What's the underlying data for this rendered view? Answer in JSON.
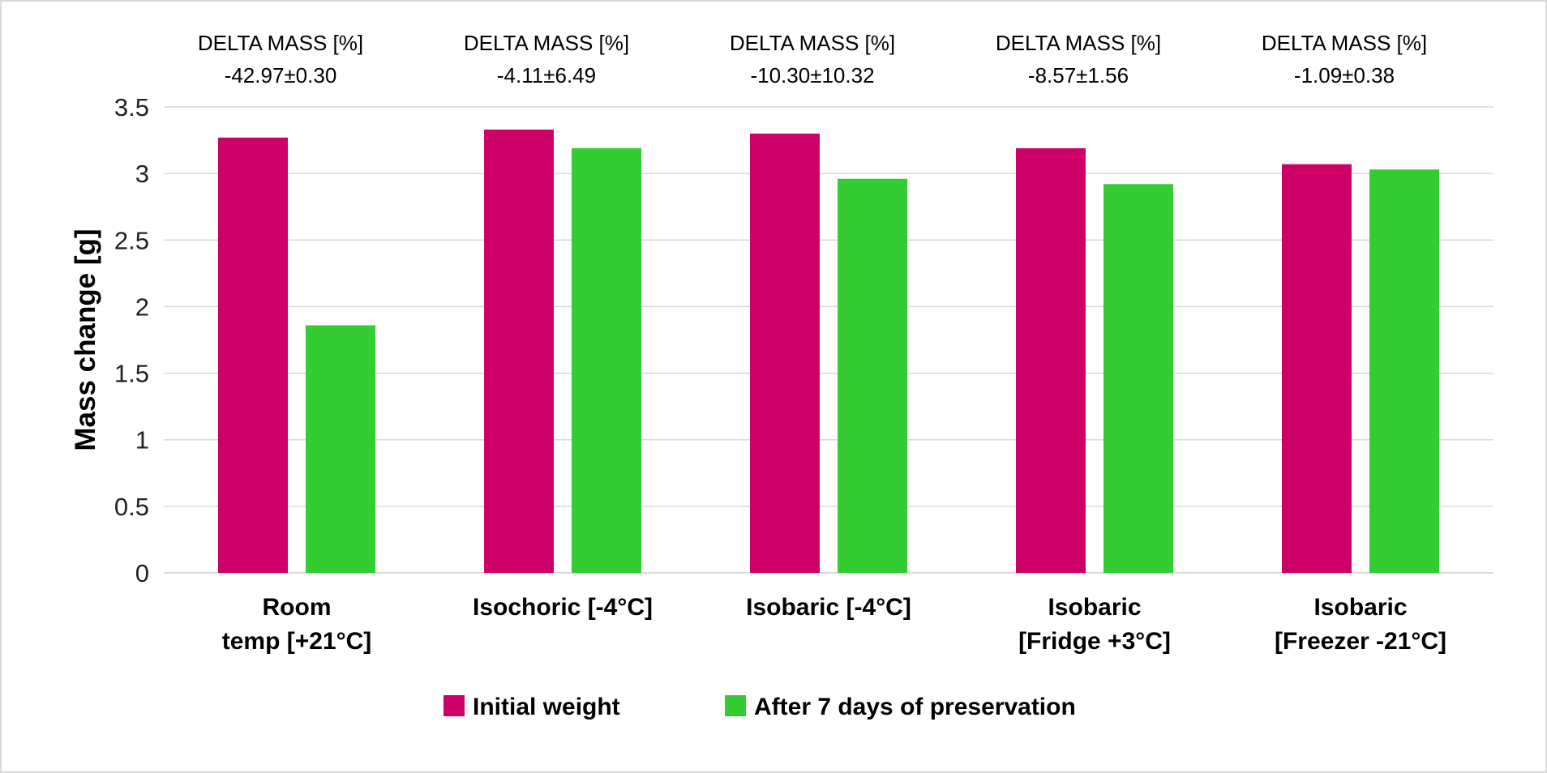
{
  "chart_data": {
    "type": "bar",
    "categories": [
      [
        "Room",
        "temp [+21°C]"
      ],
      [
        "Isochoric [-4°C]"
      ],
      [
        "Isobaric [-4°C]"
      ],
      [
        "Isobaric",
        "[Fridge +3°C]"
      ],
      [
        "Isobaric",
        "[Freezer -21°C]"
      ]
    ],
    "series": [
      {
        "name": "Initial weight",
        "color": "#cc0066",
        "values": [
          3.27,
          3.33,
          3.3,
          3.19,
          3.07
        ]
      },
      {
        "name": "After 7 days of preservation",
        "color": "#33cc33",
        "values": [
          1.86,
          3.19,
          2.96,
          2.92,
          3.03
        ]
      }
    ],
    "annotations": [
      {
        "title": "DELTA MASS [%]",
        "value": "-42.97±0.30"
      },
      {
        "title": "DELTA MASS [%]",
        "value": "-4.11±6.49"
      },
      {
        "title": "DELTA MASS [%]",
        "value": "-10.30±10.32"
      },
      {
        "title": "DELTA MASS [%]",
        "value": "-8.57±1.56"
      },
      {
        "title": "DELTA MASS [%]",
        "value": "-1.09±0.38"
      }
    ],
    "ylabel": "Mass change [g]",
    "xlabel": "",
    "ylim": [
      0,
      3.5
    ],
    "yticks": [
      "0",
      "0.5",
      "1",
      "1.5",
      "2",
      "2.5",
      "3",
      "3.5"
    ],
    "legend_position": "bottom",
    "grid": true
  }
}
